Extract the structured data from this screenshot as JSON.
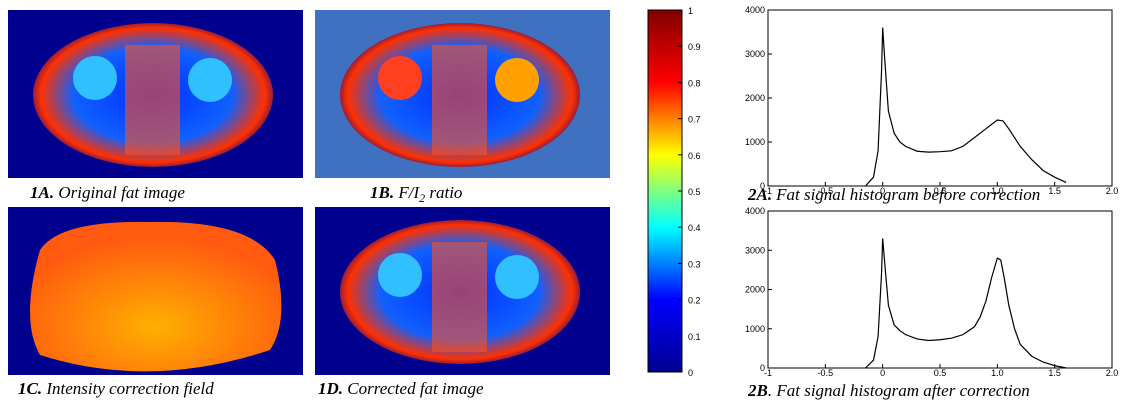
{
  "panels": [
    {
      "label": "1A.",
      "caption": "Original fat image"
    },
    {
      "label": "1B.",
      "caption": "F/I",
      "caption_sub": "2",
      "caption_end": " ratio"
    },
    {
      "label": "1C.",
      "caption": "Intensity correction field"
    },
    {
      "label": "1D.",
      "caption": "Corrected fat image"
    }
  ],
  "chart_data": [
    {
      "type": "colorbar",
      "ylim": [
        0,
        1
      ],
      "yticks": [
        0,
        0.1,
        0.2,
        0.3,
        0.4,
        0.5,
        0.6,
        0.7,
        0.8,
        0.9,
        1
      ],
      "colors": [
        "#00008f",
        "#0000ff",
        "#00ffff",
        "#ffff00",
        "#ff0000",
        "#800000"
      ]
    },
    {
      "type": "line",
      "label": "2A.",
      "caption": "Fat signal histogram before correction",
      "color": "#000000",
      "x": [
        -0.15,
        -0.08,
        -0.04,
        -0.01,
        0.0,
        0.02,
        0.05,
        0.1,
        0.15,
        0.2,
        0.3,
        0.4,
        0.5,
        0.6,
        0.7,
        0.8,
        0.9,
        0.95,
        1.0,
        1.05,
        1.1,
        1.15,
        1.2,
        1.3,
        1.4,
        1.5,
        1.6
      ],
      "values": [
        0,
        200,
        800,
        2600,
        3600,
        2800,
        1700,
        1200,
        1000,
        900,
        790,
        770,
        780,
        800,
        900,
        1100,
        1300,
        1400,
        1500,
        1480,
        1300,
        1100,
        900,
        600,
        350,
        200,
        80
      ],
      "xlim": [
        -1,
        2
      ],
      "xticks": [
        -1,
        -0.5,
        0,
        0.5,
        {
          "value": 1,
          "label": "1.0"
        },
        1.5,
        {
          "value": 2,
          "label": "2.0"
        }
      ],
      "ylim": [
        0,
        4000
      ],
      "yticks": [
        0,
        1000,
        2000,
        3000,
        4000
      ]
    },
    {
      "type": "line",
      "label": "2B",
      "caption": ". Fat signal histogram after correction",
      "color": "#000000",
      "x": [
        -0.15,
        -0.08,
        -0.04,
        -0.01,
        0.0,
        0.02,
        0.05,
        0.1,
        0.15,
        0.2,
        0.3,
        0.4,
        0.5,
        0.6,
        0.7,
        0.8,
        0.85,
        0.9,
        0.95,
        1.0,
        1.03,
        1.06,
        1.1,
        1.15,
        1.2,
        1.3,
        1.4,
        1.5,
        1.6
      ],
      "values": [
        0,
        200,
        800,
        2400,
        3300,
        2600,
        1600,
        1100,
        950,
        850,
        740,
        700,
        720,
        760,
        850,
        1050,
        1300,
        1700,
        2300,
        2800,
        2750,
        2300,
        1600,
        1000,
        600,
        300,
        150,
        60,
        0
      ],
      "xlim": [
        -1,
        2
      ],
      "xticks": [
        -1,
        -0.5,
        0,
        0.5,
        {
          "value": 1,
          "label": "1.0"
        },
        1.5,
        {
          "value": 2,
          "label": "2.0"
        }
      ],
      "ylim": [
        0,
        4000
      ],
      "yticks": [
        0,
        1000,
        2000,
        3000,
        4000
      ]
    }
  ]
}
